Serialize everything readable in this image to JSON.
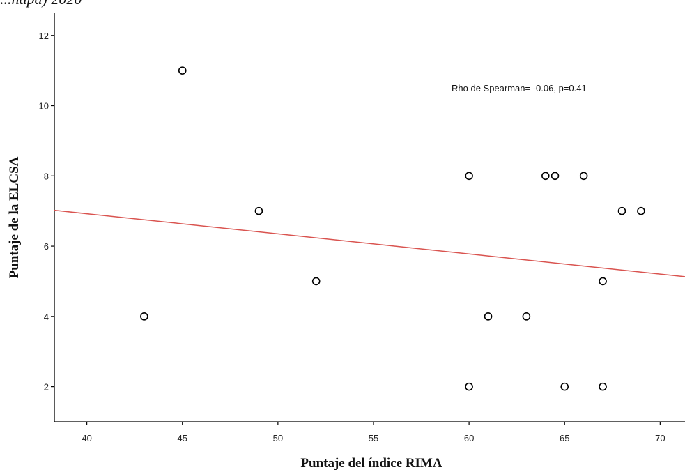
{
  "caption": "...hapa) 2020",
  "chart_data": {
    "type": "scatter",
    "xlabel": "Puntaje del índice RIMA",
    "ylabel": "Puntaje de la ELCSA",
    "xlim": [
      38.3,
      71.3
    ],
    "ylim": [
      1.0,
      12.65
    ],
    "xticks": [
      40,
      45,
      50,
      55,
      60,
      65,
      70
    ],
    "yticks": [
      2,
      4,
      6,
      8,
      10,
      12
    ],
    "grid": false,
    "points": [
      {
        "x": 43,
        "y": 4
      },
      {
        "x": 45,
        "y": 11
      },
      {
        "x": 49,
        "y": 7
      },
      {
        "x": 52,
        "y": 5
      },
      {
        "x": 60,
        "y": 8
      },
      {
        "x": 60,
        "y": 2
      },
      {
        "x": 61,
        "y": 4
      },
      {
        "x": 63,
        "y": 4
      },
      {
        "x": 64,
        "y": 8
      },
      {
        "x": 64.5,
        "y": 8
      },
      {
        "x": 65,
        "y": 2
      },
      {
        "x": 66,
        "y": 8
      },
      {
        "x": 67,
        "y": 5
      },
      {
        "x": 67,
        "y": 2
      },
      {
        "x": 68,
        "y": 7
      },
      {
        "x": 69,
        "y": 7
      }
    ],
    "fit_line": {
      "x": [
        38.3,
        71.3
      ],
      "y": [
        7.02,
        5.13
      ],
      "color": "#d9534f"
    },
    "annotation": "Rho de Spearman= -0.06, p=0.41",
    "point_color": "#000000"
  }
}
